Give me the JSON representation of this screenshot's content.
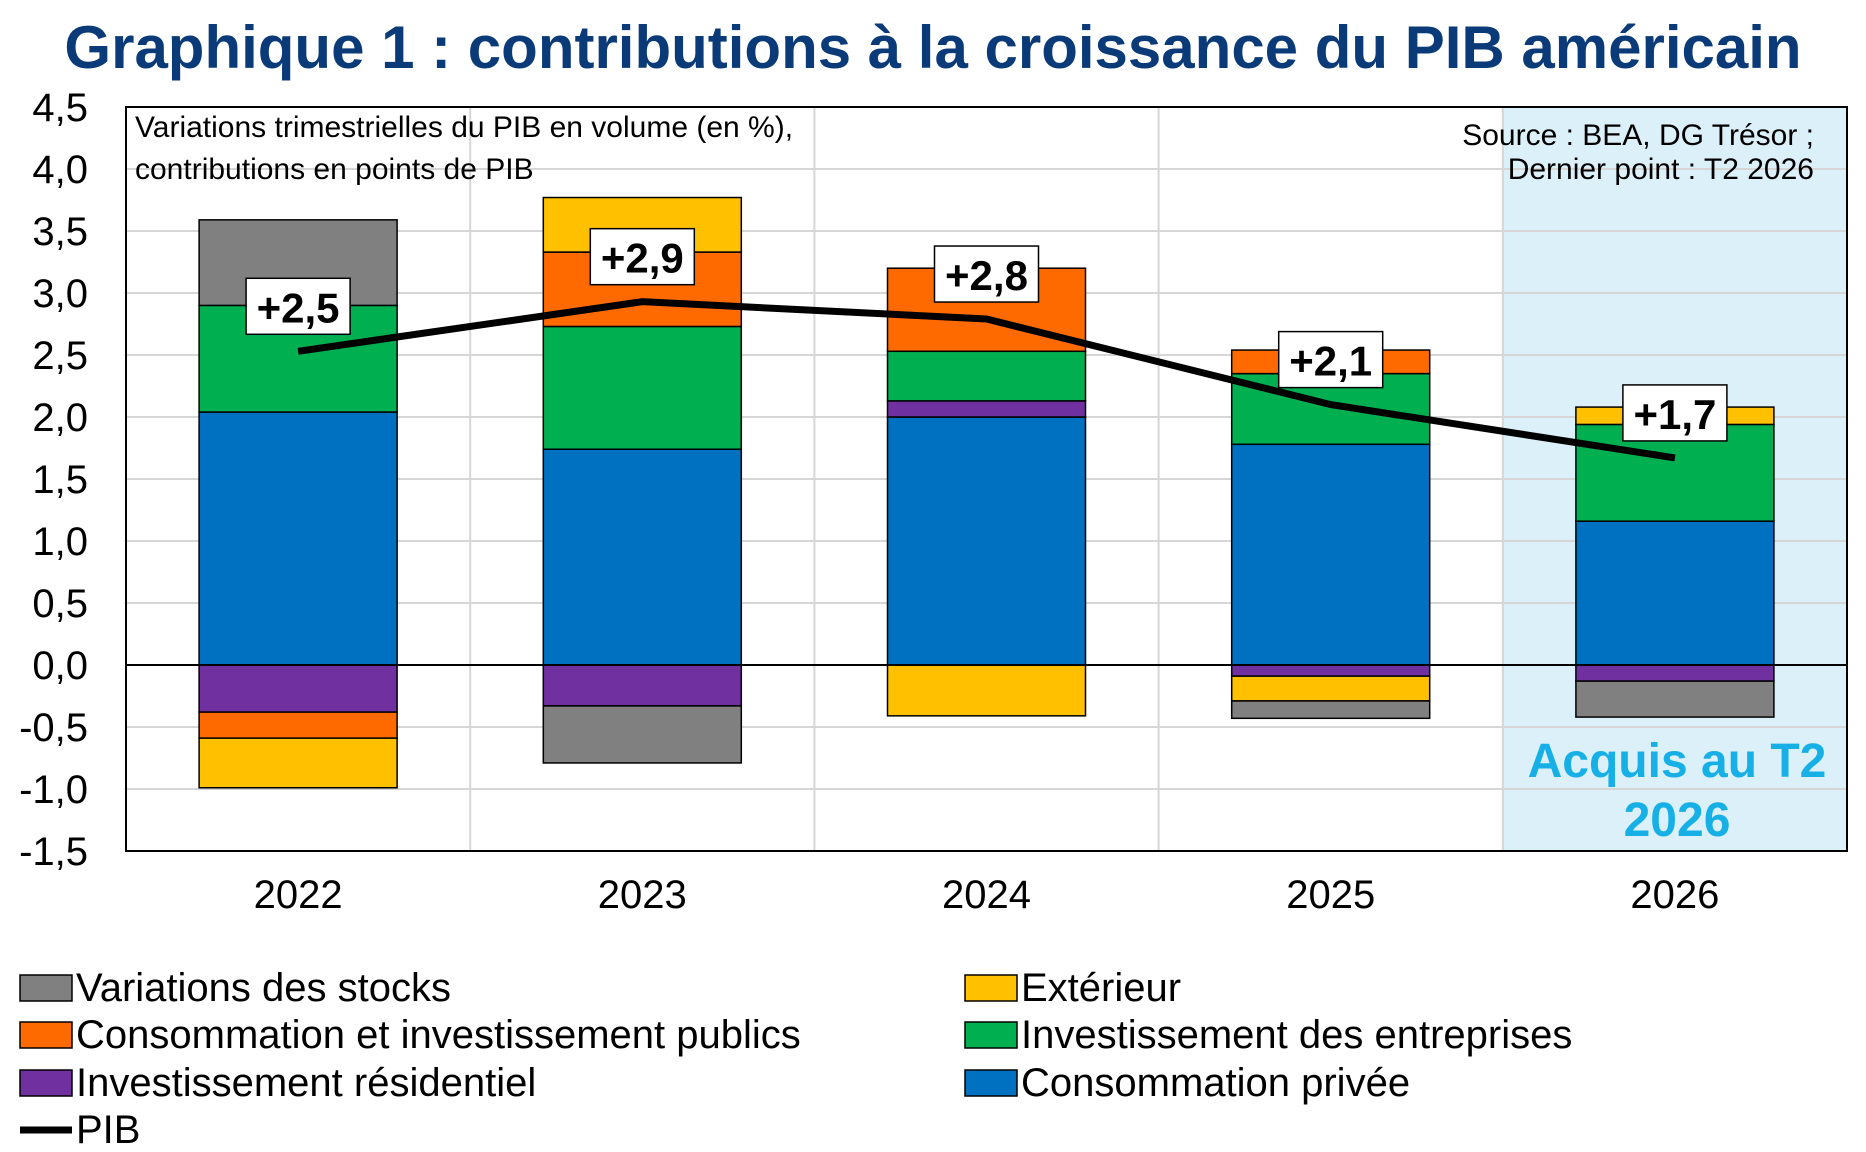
{
  "chart_data": {
    "type": "bar",
    "stacked": true,
    "title": "Graphique 1 : contributions à la croissance du PIB américain",
    "note_left": [
      "Variations trimestrielles du PIB en volume (en %),",
      "contributions en points de PIB"
    ],
    "note_right": [
      "Source : BEA, DG Trésor ;",
      "Dernier point : T2 2026"
    ],
    "categories": [
      "2022",
      "2023",
      "2024",
      "2025",
      "2026"
    ],
    "ylim": [
      -1.5,
      4.5
    ],
    "yticks": [
      "4,5",
      "4,0",
      "3,5",
      "3,0",
      "2,5",
      "2,0",
      "1,5",
      "1,0",
      "0,5",
      "0,0",
      "-0,5",
      "-1,0",
      "-1,5"
    ],
    "grid": true,
    "highlight": {
      "category": "2026",
      "label": [
        "Acquis au T2",
        "2026"
      ],
      "color": "#dcf0fa",
      "text_color": "#17b0e6"
    },
    "series": [
      {
        "name": "Consommation privée",
        "color": "#0070c0",
        "values": [
          2.04,
          1.74,
          2.0,
          1.78,
          1.16
        ]
      },
      {
        "name": "Investissement résidentiel",
        "color": "#7030a0",
        "values": [
          -0.38,
          -0.33,
          0.13,
          -0.09,
          -0.13
        ]
      },
      {
        "name": "Investissement des entreprises",
        "color": "#00b050",
        "values": [
          0.86,
          0.99,
          0.4,
          0.57,
          0.78
        ]
      },
      {
        "name": "Consommation et investissement publics",
        "color": "#ff6a00",
        "values": [
          -0.21,
          0.6,
          0.67,
          0.19,
          0.0
        ]
      },
      {
        "name": "Extérieur",
        "color": "#ffc000",
        "values": [
          -0.4,
          0.44,
          -0.41,
          -0.2,
          0.14
        ]
      },
      {
        "name": "Variations des stocks",
        "color": "#808080",
        "values": [
          0.69,
          -0.46,
          0.0,
          -0.14,
          -0.29
        ]
      }
    ],
    "pib": {
      "name": "PIB",
      "values": [
        2.53,
        2.93,
        2.79,
        2.1,
        1.67
      ],
      "labels": [
        "+2,5",
        "+2,9",
        "+2,8",
        "+2,1",
        "+1,7"
      ],
      "color": "#000000"
    },
    "legend": {
      "position": "bottom",
      "left": [
        "Variations des stocks",
        "Consommation et investissement publics",
        "Investissement résidentiel",
        "PIB"
      ],
      "right": [
        "Extérieur",
        "Investissement des entreprises",
        "Consommation privée"
      ]
    }
  }
}
